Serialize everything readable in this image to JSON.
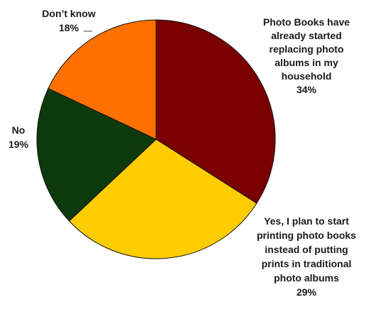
{
  "chart_data": {
    "type": "pie",
    "start_angle_deg": 0,
    "direction": "clockwise",
    "slices": [
      {
        "label_lines": [
          "Photo Books have",
          "already started",
          "replacing photo",
          "albums in my",
          "household"
        ],
        "value": 34,
        "value_label": "34%",
        "color": "#7a0000"
      },
      {
        "label_lines": [
          "Yes, I plan to start",
          "printing photo books",
          "instead of putting",
          "prints in traditional",
          "photo albums"
        ],
        "value": 29,
        "value_label": "29%",
        "color": "#ffcc00"
      },
      {
        "label_lines": [
          "No"
        ],
        "value": 19,
        "value_label": "19%",
        "color": "#0d3a0d"
      },
      {
        "label_lines": [
          "Don’t know"
        ],
        "value": 18,
        "value_label": "18%",
        "color": "#ff7000"
      }
    ]
  }
}
